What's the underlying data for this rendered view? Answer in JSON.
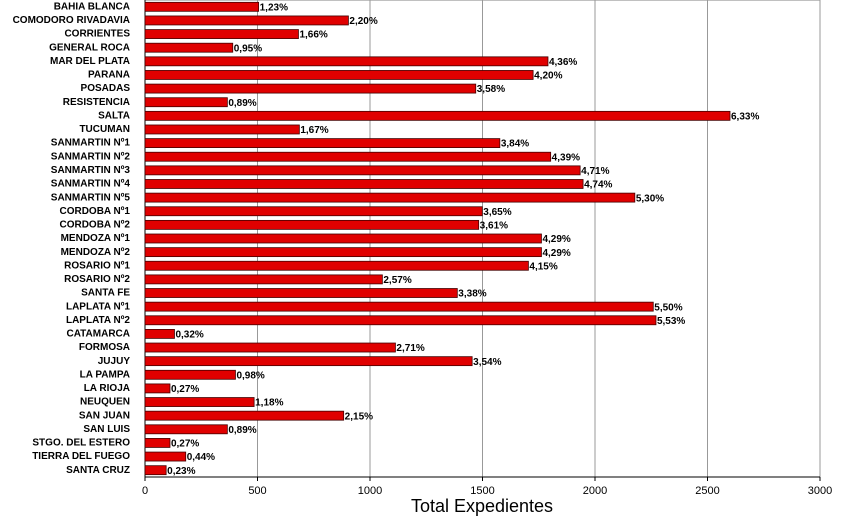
{
  "chart_data": {
    "type": "barh",
    "x_label": "Total Expedientes",
    "categories": [
      "BAHIA BLANCA",
      "COMODORO RIVADAVIA",
      "CORRIENTES",
      "GENERAL ROCA",
      "MAR DEL PLATA",
      "PARANA",
      "POSADAS",
      "RESISTENCIA",
      "SALTA",
      "TUCUMAN",
      "SANMARTIN Nº1",
      "SANMARTIN Nº2",
      "SANMARTIN Nº3",
      "SANMARTIN Nº4",
      "SANMARTIN Nº5",
      "CORDOBA Nº1",
      "CORDOBA Nº2",
      "MENDOZA Nº1",
      "MENDOZA Nº2",
      "ROSARIO Nº1",
      "ROSARIO Nº2",
      "SANTA FE",
      "LAPLATA Nº1",
      "LAPLATA Nº2",
      "CATAMARCA",
      "FORMOSA",
      "JUJUY",
      "LA PAMPA",
      "LA RIOJA",
      "NEUQUEN",
      "SAN JUAN",
      "SAN LUIS",
      "STGO. DEL ESTERO",
      "TIERRA DEL FUEGO",
      "SANTA CRUZ"
    ],
    "values": [
      505,
      904,
      682,
      390,
      1791,
      1725,
      1470,
      366,
      2600,
      686,
      1577,
      1803,
      1934,
      1947,
      2177,
      1499,
      1483,
      1762,
      1762,
      1704,
      1055,
      1388,
      2259,
      2271,
      131,
      1113,
      1454,
      402,
      111,
      485,
      883,
      366,
      111,
      181,
      94
    ],
    "percent_labels": [
      "1,23%",
      "2,20%",
      "1,66%",
      "0,95%",
      "4,36%",
      "4,20%",
      "3,58%",
      "0,89%",
      "6,33%",
      "1,67%",
      "3,84%",
      "4,39%",
      "4,71%",
      "4,74%",
      "5,30%",
      "3,65%",
      "3,61%",
      "4,29%",
      "4,29%",
      "4,15%",
      "2,57%",
      "3,38%",
      "5,50%",
      "5,53%",
      "0,32%",
      "2,71%",
      "3,54%",
      "0,98%",
      "0,27%",
      "1,18%",
      "2,15%",
      "0,89%",
      "0,27%",
      "0,44%",
      "0,23%"
    ],
    "color": "#e00000",
    "xlim": [
      0,
      3000
    ],
    "xticks": [
      0,
      500,
      1000,
      1500,
      2000,
      2500,
      3000
    ],
    "grid": true
  }
}
